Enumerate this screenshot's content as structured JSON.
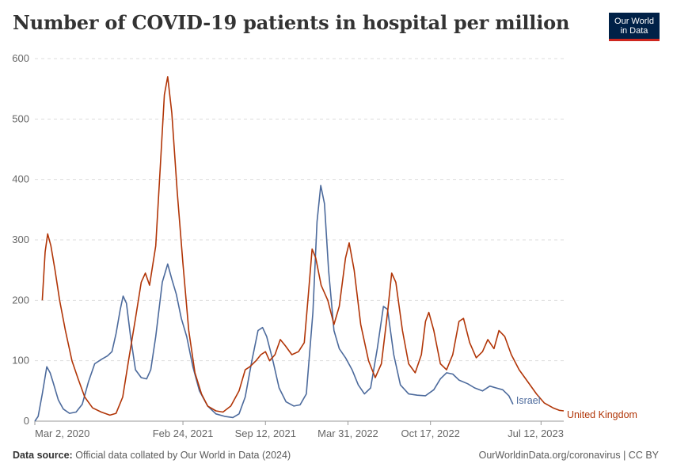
{
  "header": {
    "title": "Number of COVID-19 patients in hospital per million",
    "logo_line1": "Our World",
    "logo_line2": "in Data"
  },
  "footer": {
    "source_label": "Data source:",
    "source_text": "Official data collated by Our World in Data (2024)",
    "link_text": "OurWorldinData.org/coronavirus | CC BY"
  },
  "colors": {
    "israel": "#4c6a9c",
    "united_kingdom": "#b13507",
    "grid": "#dddddd",
    "axis": "#999999"
  },
  "chart_data": {
    "type": "line",
    "title": "Number of COVID-19 patients in hospital per million",
    "xlabel": "",
    "ylabel": "",
    "ylim": [
      0,
      600
    ],
    "y_ticks": [
      0,
      100,
      200,
      300,
      400,
      500,
      600
    ],
    "x_range": [
      "2020-03-02",
      "2023-12-31"
    ],
    "x_tick_labels": [
      {
        "date": "2020-03-02",
        "label": "Mar 2, 2020"
      },
      {
        "date": "2021-02-24",
        "label": "Feb 24, 2021"
      },
      {
        "date": "2021-09-12",
        "label": "Sep 12, 2021"
      },
      {
        "date": "2022-03-31",
        "label": "Mar 31, 2022"
      },
      {
        "date": "2022-10-17",
        "label": "Oct 17, 2022"
      },
      {
        "date": "2023-07-12",
        "label": "Jul 12, 2023"
      }
    ],
    "grid": "horizontal dashed",
    "legend": "inline-right",
    "series": [
      {
        "name": "Israel",
        "color": "#4c6a9c",
        "points": [
          [
            "2020-03-02",
            0
          ],
          [
            "2020-03-10",
            8
          ],
          [
            "2020-03-20",
            45
          ],
          [
            "2020-03-31",
            90
          ],
          [
            "2020-04-08",
            80
          ],
          [
            "2020-04-15",
            65
          ],
          [
            "2020-04-28",
            35
          ],
          [
            "2020-05-10",
            20
          ],
          [
            "2020-05-25",
            13
          ],
          [
            "2020-06-10",
            15
          ],
          [
            "2020-06-25",
            28
          ],
          [
            "2020-07-10",
            65
          ],
          [
            "2020-07-25",
            95
          ],
          [
            "2020-08-10",
            102
          ],
          [
            "2020-08-25",
            108
          ],
          [
            "2020-09-05",
            115
          ],
          [
            "2020-09-15",
            145
          ],
          [
            "2020-09-25",
            185
          ],
          [
            "2020-10-02",
            207
          ],
          [
            "2020-10-10",
            195
          ],
          [
            "2020-10-20",
            140
          ],
          [
            "2020-11-01",
            85
          ],
          [
            "2020-11-15",
            72
          ],
          [
            "2020-11-28",
            70
          ],
          [
            "2020-12-08",
            85
          ],
          [
            "2020-12-20",
            140
          ],
          [
            "2021-01-05",
            230
          ],
          [
            "2021-01-18",
            260
          ],
          [
            "2021-01-28",
            235
          ],
          [
            "2021-02-08",
            210
          ],
          [
            "2021-02-20",
            170
          ],
          [
            "2021-03-05",
            140
          ],
          [
            "2021-03-20",
            90
          ],
          [
            "2021-04-05",
            50
          ],
          [
            "2021-04-25",
            25
          ],
          [
            "2021-05-15",
            12
          ],
          [
            "2021-06-05",
            8
          ],
          [
            "2021-06-25",
            6
          ],
          [
            "2021-07-10",
            12
          ],
          [
            "2021-07-25",
            40
          ],
          [
            "2021-08-10",
            100
          ],
          [
            "2021-08-25",
            150
          ],
          [
            "2021-09-05",
            155
          ],
          [
            "2021-09-15",
            140
          ],
          [
            "2021-09-30",
            100
          ],
          [
            "2021-10-15",
            55
          ],
          [
            "2021-11-01",
            32
          ],
          [
            "2021-11-20",
            25
          ],
          [
            "2021-12-05",
            27
          ],
          [
            "2021-12-20",
            45
          ],
          [
            "2022-01-05",
            180
          ],
          [
            "2022-01-15",
            330
          ],
          [
            "2022-01-24",
            390
          ],
          [
            "2022-02-02",
            360
          ],
          [
            "2022-02-12",
            250
          ],
          [
            "2022-02-25",
            150
          ],
          [
            "2022-03-10",
            120
          ],
          [
            "2022-03-25",
            105
          ],
          [
            "2022-04-10",
            85
          ],
          [
            "2022-04-25",
            60
          ],
          [
            "2022-05-10",
            45
          ],
          [
            "2022-05-25",
            55
          ],
          [
            "2022-06-10",
            120
          ],
          [
            "2022-06-25",
            190
          ],
          [
            "2022-07-05",
            185
          ],
          [
            "2022-07-20",
            110
          ],
          [
            "2022-08-05",
            60
          ],
          [
            "2022-08-25",
            45
          ],
          [
            "2022-09-15",
            43
          ],
          [
            "2022-10-05",
            42
          ],
          [
            "2022-10-25",
            52
          ],
          [
            "2022-11-10",
            70
          ],
          [
            "2022-11-25",
            80
          ],
          [
            "2022-12-10",
            78
          ],
          [
            "2022-12-25",
            68
          ],
          [
            "2023-01-15",
            62
          ],
          [
            "2023-02-01",
            55
          ],
          [
            "2023-02-20",
            50
          ],
          [
            "2023-03-10",
            58
          ],
          [
            "2023-03-25",
            55
          ],
          [
            "2023-04-10",
            52
          ],
          [
            "2023-04-25",
            42
          ],
          [
            "2023-05-05",
            28
          ]
        ]
      },
      {
        "name": "United Kingdom",
        "color": "#b13507",
        "points": [
          [
            "2020-03-20",
            200
          ],
          [
            "2020-03-27",
            280
          ],
          [
            "2020-04-02",
            310
          ],
          [
            "2020-04-10",
            290
          ],
          [
            "2020-04-20",
            250
          ],
          [
            "2020-05-01",
            200
          ],
          [
            "2020-05-15",
            150
          ],
          [
            "2020-05-31",
            100
          ],
          [
            "2020-06-15",
            70
          ],
          [
            "2020-07-01",
            40
          ],
          [
            "2020-07-20",
            22
          ],
          [
            "2020-08-10",
            15
          ],
          [
            "2020-08-31",
            10
          ],
          [
            "2020-09-15",
            13
          ],
          [
            "2020-10-01",
            40
          ],
          [
            "2020-10-15",
            100
          ],
          [
            "2020-11-01",
            170
          ],
          [
            "2020-11-15",
            230
          ],
          [
            "2020-11-25",
            245
          ],
          [
            "2020-12-05",
            225
          ],
          [
            "2020-12-20",
            290
          ],
          [
            "2020-12-31",
            420
          ],
          [
            "2021-01-10",
            540
          ],
          [
            "2021-01-18",
            570
          ],
          [
            "2021-01-28",
            510
          ],
          [
            "2021-02-10",
            380
          ],
          [
            "2021-02-24",
            260
          ],
          [
            "2021-03-10",
            150
          ],
          [
            "2021-03-25",
            80
          ],
          [
            "2021-04-10",
            45
          ],
          [
            "2021-04-25",
            25
          ],
          [
            "2021-05-15",
            17
          ],
          [
            "2021-06-01",
            15
          ],
          [
            "2021-06-20",
            25
          ],
          [
            "2021-07-10",
            50
          ],
          [
            "2021-07-25",
            85
          ],
          [
            "2021-08-05",
            90
          ],
          [
            "2021-08-20",
            100
          ],
          [
            "2021-09-01",
            110
          ],
          [
            "2021-09-12",
            115
          ],
          [
            "2021-09-22",
            100
          ],
          [
            "2021-10-05",
            110
          ],
          [
            "2021-10-18",
            135
          ],
          [
            "2021-10-30",
            125
          ],
          [
            "2021-11-15",
            110
          ],
          [
            "2021-12-01",
            115
          ],
          [
            "2021-12-15",
            130
          ],
          [
            "2021-12-25",
            210
          ],
          [
            "2022-01-03",
            285
          ],
          [
            "2022-01-12",
            270
          ],
          [
            "2022-01-25",
            225
          ],
          [
            "2022-02-10",
            200
          ],
          [
            "2022-02-25",
            160
          ],
          [
            "2022-03-10",
            190
          ],
          [
            "2022-03-25",
            270
          ],
          [
            "2022-04-03",
            295
          ],
          [
            "2022-04-15",
            250
          ],
          [
            "2022-05-01",
            160
          ],
          [
            "2022-05-20",
            100
          ],
          [
            "2022-06-05",
            72
          ],
          [
            "2022-06-20",
            95
          ],
          [
            "2022-07-05",
            180
          ],
          [
            "2022-07-15",
            245
          ],
          [
            "2022-07-25",
            230
          ],
          [
            "2022-08-10",
            150
          ],
          [
            "2022-08-25",
            95
          ],
          [
            "2022-09-10",
            80
          ],
          [
            "2022-09-25",
            110
          ],
          [
            "2022-10-05",
            165
          ],
          [
            "2022-10-13",
            180
          ],
          [
            "2022-10-25",
            150
          ],
          [
            "2022-11-10",
            95
          ],
          [
            "2022-11-25",
            85
          ],
          [
            "2022-12-10",
            110
          ],
          [
            "2022-12-25",
            165
          ],
          [
            "2023-01-05",
            170
          ],
          [
            "2023-01-20",
            130
          ],
          [
            "2023-02-05",
            105
          ],
          [
            "2023-02-20",
            115
          ],
          [
            "2023-03-05",
            135
          ],
          [
            "2023-03-20",
            120
          ],
          [
            "2023-04-01",
            150
          ],
          [
            "2023-04-15",
            140
          ],
          [
            "2023-05-01",
            110
          ],
          [
            "2023-05-20",
            85
          ],
          [
            "2023-06-10",
            65
          ],
          [
            "2023-07-01",
            45
          ],
          [
            "2023-07-20",
            30
          ],
          [
            "2023-08-10",
            22
          ],
          [
            "2023-08-25",
            18
          ],
          [
            "2023-09-05",
            17
          ]
        ]
      }
    ]
  }
}
